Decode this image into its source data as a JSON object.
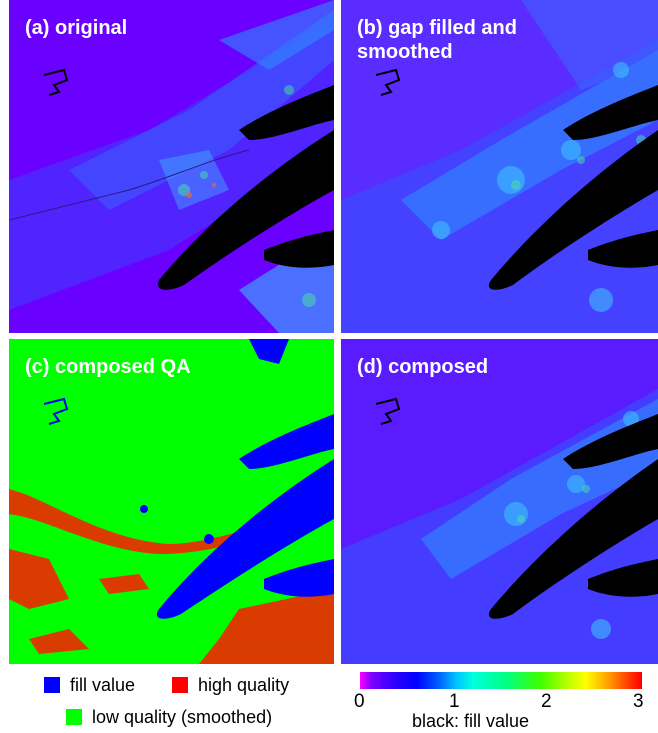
{
  "panels": {
    "a": {
      "title": "(a) original"
    },
    "b": {
      "title_line1": "(b) gap filled and",
      "title_line2": "smoothed"
    },
    "c": {
      "title": "(c) composed QA"
    },
    "d": {
      "title": "(d) composed"
    }
  },
  "qa_legend": {
    "items": [
      {
        "label": "fill value",
        "color": "#0000ff"
      },
      {
        "label": "high quality",
        "color": "#ff0000"
      },
      {
        "label": "low quality (smoothed)",
        "color": "#00ff00"
      }
    ]
  },
  "colorbar": {
    "ticks": [
      "0",
      "1",
      "2",
      "3"
    ],
    "caption": "black: fill value",
    "range": [
      0,
      3
    ]
  },
  "colors": {
    "background_purple": "#6a00ff",
    "water_black": "#000000",
    "qa_green": "#00ff00",
    "qa_blue": "#0000ff",
    "qa_red": "#ff1a00"
  }
}
